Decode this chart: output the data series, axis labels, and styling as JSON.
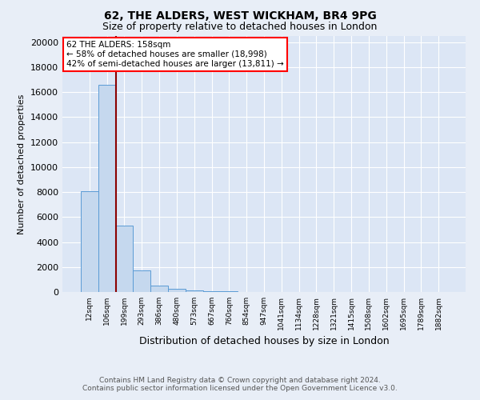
{
  "title1": "62, THE ALDERS, WEST WICKHAM, BR4 9PG",
  "title2": "Size of property relative to detached houses in London",
  "xlabel": "Distribution of detached houses by size in London",
  "ylabel": "Number of detached properties",
  "footer1": "Contains HM Land Registry data © Crown copyright and database right 2024.",
  "footer2": "Contains public sector information licensed under the Open Government Licence v3.0.",
  "annotation_line1": "62 THE ALDERS: 158sqm",
  "annotation_line2": "← 58% of detached houses are smaller (18,998)",
  "annotation_line3": "42% of semi-detached houses are larger (13,811) →",
  "bin_labels": [
    "12sqm",
    "106sqm",
    "199sqm",
    "293sqm",
    "386sqm",
    "480sqm",
    "573sqm",
    "667sqm",
    "760sqm",
    "854sqm",
    "947sqm",
    "1041sqm",
    "1134sqm",
    "1228sqm",
    "1321sqm",
    "1415sqm",
    "1508sqm",
    "1602sqm",
    "1695sqm",
    "1789sqm",
    "1882sqm"
  ],
  "bar_values": [
    8050,
    16600,
    5300,
    1750,
    500,
    280,
    150,
    80,
    40,
    20,
    10,
    5,
    3,
    2,
    1,
    1,
    0,
    0,
    0,
    0,
    0
  ],
  "bar_color": "#c5d8ee",
  "bar_edge_color": "#5b9bd5",
  "red_line_x": 1.5,
  "ylim": [
    0,
    20500
  ],
  "yticks": [
    0,
    2000,
    4000,
    6000,
    8000,
    10000,
    12000,
    14000,
    16000,
    18000,
    20000
  ],
  "background_color": "#e8eef7",
  "grid_color": "#ffffff",
  "plot_bg_color": "#dce6f5"
}
